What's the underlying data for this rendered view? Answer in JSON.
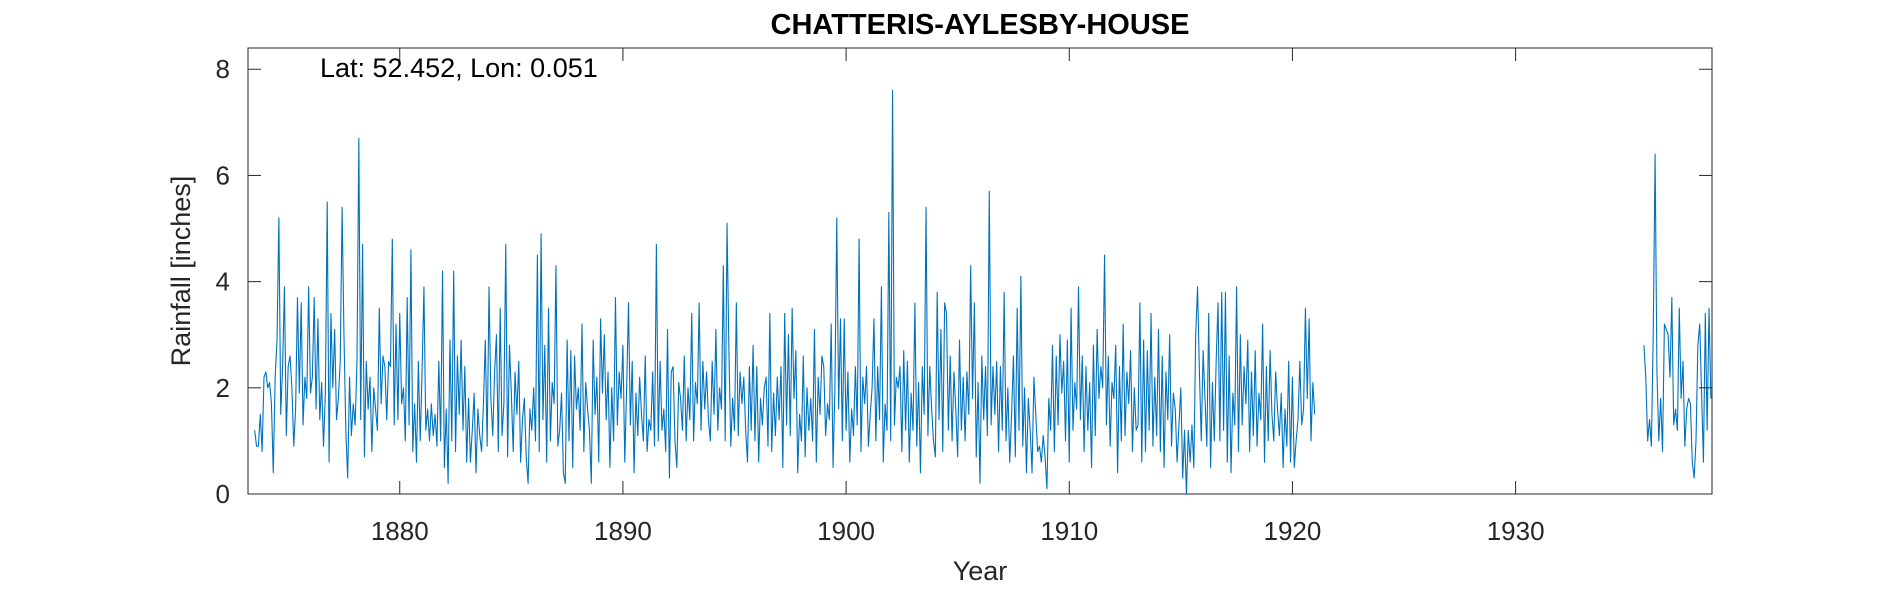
{
  "chart_data": {
    "type": "line",
    "title": "CHATTERIS-AYLESBY-HOUSE",
    "xlabel": "Year",
    "ylabel": "Rainfall [inches]",
    "annotation": "Lat: 52.452, Lon: 0.051",
    "xlim": [
      1873.2,
      1938.8
    ],
    "ylim": [
      0,
      8.4
    ],
    "xticks": [
      1880,
      1890,
      1900,
      1910,
      1920,
      1930
    ],
    "yticks": [
      0,
      2,
      4,
      6,
      8
    ],
    "grid": false,
    "line_color": "#0072BD",
    "series": [
      {
        "x_start": 1873.5,
        "x_step": 0.08333,
        "values": [
          1.2,
          0.9,
          0.9,
          1.5,
          0.8,
          2.2,
          2.3,
          2.0,
          2.1,
          1.7,
          0.4,
          2.2,
          2.9,
          5.2,
          1.5,
          2.4,
          3.9,
          1.1,
          2.4,
          2.6,
          2.0,
          0.9,
          1.6,
          3.7,
          1.9,
          3.6,
          1.3,
          2.2,
          1.8,
          3.9,
          1.9,
          2.2,
          3.7,
          1.6,
          3.3,
          1.4,
          2.1,
          0.9,
          1.9,
          5.5,
          0.6,
          3.4,
          2.0,
          3.1,
          1.4,
          1.8,
          2.5,
          5.4,
          3.0,
          1.2,
          0.3,
          2.2,
          1.1,
          1.7,
          1.3,
          2.5,
          6.7,
          1.4,
          4.7,
          0.7,
          2.5,
          1.6,
          2.2,
          0.8,
          2.0,
          1.6,
          1.2,
          3.5,
          1.7,
          2.6,
          2.4,
          1.4,
          2.5,
          2.4,
          4.8,
          1.3,
          3.2,
          1.4,
          3.4,
          1.7,
          2.0,
          1.0,
          3.7,
          1.3,
          4.6,
          0.8,
          1.7,
          0.6,
          2.5,
          1.0,
          2.3,
          3.9,
          1.2,
          1.6,
          1.0,
          1.7,
          1.1,
          1.5,
          0.9,
          2.5,
          1.0,
          4.2,
          0.5,
          1.6,
          0.2,
          2.9,
          1.0,
          4.2,
          0.8,
          2.6,
          1.5,
          2.9,
          1.2,
          2.4,
          0.6,
          1.8,
          0.6,
          1.2,
          1.9,
          0.4,
          1.6,
          1.1,
          0.8,
          1.7,
          2.9,
          0.9,
          3.9,
          1.8,
          1.1,
          2.3,
          3.0,
          0.8,
          3.5,
          1.1,
          1.7,
          4.7,
          0.7,
          2.8,
          1.9,
          0.8,
          2.3,
          1.5,
          2.5,
          0.6,
          1.4,
          1.8,
          0.7,
          0.2,
          1.6,
          1.2,
          2.0,
          1.0,
          4.5,
          0.8,
          4.9,
          1.4,
          2.8,
          0.6,
          3.5,
          1.0,
          2.1,
          1.7,
          4.3,
          0.9,
          1.2,
          1.9,
          0.4,
          0.2,
          2.9,
          1.0,
          2.7,
          0.5,
          2.6,
          1.6,
          2.0,
          1.2,
          3.2,
          0.8,
          2.1,
          1.6,
          1.2,
          0.2,
          2.9,
          1.5,
          2.2,
          0.6,
          3.3,
          1.9,
          3.0,
          1.4,
          2.3,
          0.5,
          2.0,
          1.0,
          3.7,
          1.3,
          2.3,
          1.8,
          2.8,
          0.6,
          2.0,
          3.6,
          1.3,
          2.5,
          0.4,
          1.9,
          1.1,
          2.2,
          1.5,
          1.0,
          2.6,
          0.8,
          1.4,
          1.2,
          2.3,
          0.9,
          4.7,
          1.0,
          2.5,
          1.2,
          1.6,
          0.8,
          3.1,
          0.3,
          2.3,
          2.4,
          1.0,
          0.5,
          2.1,
          1.8,
          1.2,
          2.6,
          1.0,
          2.0,
          1.4,
          3.4,
          1.0,
          2.1,
          1.7,
          3.6,
          1.2,
          2.5,
          1.6,
          2.3,
          1.4,
          1.0,
          2.5,
          1.5,
          3.1,
          1.2,
          2.0,
          1.6,
          4.3,
          1.0,
          5.1,
          2.7,
          0.9,
          1.8,
          1.2,
          3.6,
          1.1,
          2.3,
          1.7,
          2.2,
          1.2,
          0.6,
          2.4,
          1.2,
          2.8,
          1.0,
          2.4,
          0.6,
          1.8,
          1.3,
          2.0,
          2.2,
          0.9,
          3.4,
          0.8,
          1.9,
          1.1,
          2.2,
          1.4,
          2.4,
          0.5,
          3.4,
          1.3,
          3.0,
          1.1,
          3.5,
          1.8,
          2.7,
          0.4,
          1.5,
          1.0,
          2.6,
          0.7,
          2.0,
          1.2,
          1.8,
          1.0,
          3.1,
          0.6,
          2.2,
          1.5,
          2.6,
          2.4,
          1.1,
          1.7,
          1.4,
          3.2,
          0.5,
          2.0,
          5.2,
          1.6,
          3.3,
          1.0,
          3.3,
          1.2,
          2.3,
          0.6,
          1.6,
          1.1,
          2.4,
          1.3,
          4.8,
          0.8,
          2.2,
          1.7,
          2.4,
          0.9,
          1.5,
          2.0,
          3.3,
          1.0,
          2.4,
          1.4,
          3.9,
          0.6,
          1.7,
          1.2,
          5.3,
          1.0,
          7.6,
          1.3,
          2.2,
          2.0,
          2.4,
          0.8,
          2.7,
          1.2,
          2.5,
          0.6,
          1.9,
          1.2,
          3.6,
          0.9,
          2.1,
          0.4,
          2.4,
          1.5,
          5.4,
          1.1,
          2.4,
          1.6,
          1.0,
          0.7,
          3.8,
          1.4,
          3.1,
          0.8,
          3.6,
          3.4,
          1.2,
          2.6,
          1.0,
          2.3,
          1.6,
          0.7,
          2.9,
          1.2,
          2.2,
          1.0,
          2.3,
          1.5,
          4.3,
          1.8,
          3.6,
          0.7,
          2.1,
          0.2,
          2.6,
          1.4,
          2.4,
          1.1,
          5.7,
          1.3,
          2.4,
          1.5,
          2.5,
          0.8,
          2.4,
          1.2,
          3.8,
          1.0,
          2.0,
          0.6,
          1.5,
          2.6,
          0.7,
          3.5,
          1.2,
          4.1,
          0.9,
          2.0,
          0.4,
          1.8,
          1.2,
          0.4,
          2.2,
          1.5,
          0.8,
          0.9,
          0.6,
          1.1,
          0.7,
          0.1,
          1.8,
          1.2,
          2.8,
          0.8,
          2.6,
          1.3,
          3.0,
          1.9,
          2.5,
          1.0,
          2.9,
          0.6,
          3.5,
          1.2,
          2.1,
          1.6,
          3.9,
          1.4,
          2.6,
          0.8,
          2.4,
          1.2,
          2.1,
          0.5,
          2.8,
          1.1,
          3.1,
          1.8,
          2.4,
          2.0,
          4.5,
          1.3,
          2.6,
          0.9,
          2.1,
          1.8,
          2.8,
          0.4,
          2.4,
          1.0,
          3.2,
          1.1,
          2.3,
          1.7,
          2.7,
          0.8,
          2.0,
          1.2,
          1.3,
          3.6,
          0.6,
          2.9,
          0.8,
          2.7,
          1.2,
          3.4,
          0.9,
          2.2,
          1.1,
          3.1,
          0.8,
          2.6,
          0.5,
          2.3,
          1.4,
          3.0,
          0.9,
          1.9,
          1.6,
          0.6,
          1.3,
          2.0,
          0.3,
          1.2,
          0.0,
          1.2,
          0.6,
          1.3,
          0.5,
          3.0,
          3.9,
          2.3,
          1.0,
          2.7,
          1.8,
          0.9,
          3.4,
          0.5,
          2.1,
          1.0,
          2.5,
          3.6,
          1.0,
          3.8,
          1.2,
          3.8,
          0.6,
          2.6,
          0.4,
          1.9,
          1.3,
          3.9,
          0.8,
          3.0,
          1.3,
          2.4,
          1.7,
          2.9,
          0.8,
          2.3,
          1.1,
          2.7,
          0.9,
          1.9,
          1.4,
          3.2,
          0.6,
          2.4,
          1.0,
          2.7,
          1.5,
          1.0,
          2.3,
          1.6,
          1.1,
          1.9,
          0.5,
          1.6,
          0.9,
          2.5,
          0.6,
          2.2,
          0.5,
          1.0,
          1.4,
          2.5,
          1.3,
          1.6,
          3.5,
          1.8,
          3.3,
          1.0,
          2.1,
          1.5
        ]
      },
      {
        "x_start": 1935.75,
        "x_step": 0.08333,
        "values": [
          2.8,
          2.2,
          1.0,
          1.4,
          0.9,
          3.0,
          6.4,
          2.3,
          1.0,
          1.8,
          0.8,
          3.2,
          3.1,
          3.0,
          2.2,
          3.7,
          1.3,
          1.6,
          1.2,
          3.5,
          1.8,
          2.5,
          0.9,
          1.6,
          1.8,
          1.7,
          0.6,
          0.3,
          1.0,
          2.8,
          3.2,
          1.9,
          0.6,
          3.4,
          1.2,
          3.5,
          1.8
        ]
      }
    ]
  }
}
